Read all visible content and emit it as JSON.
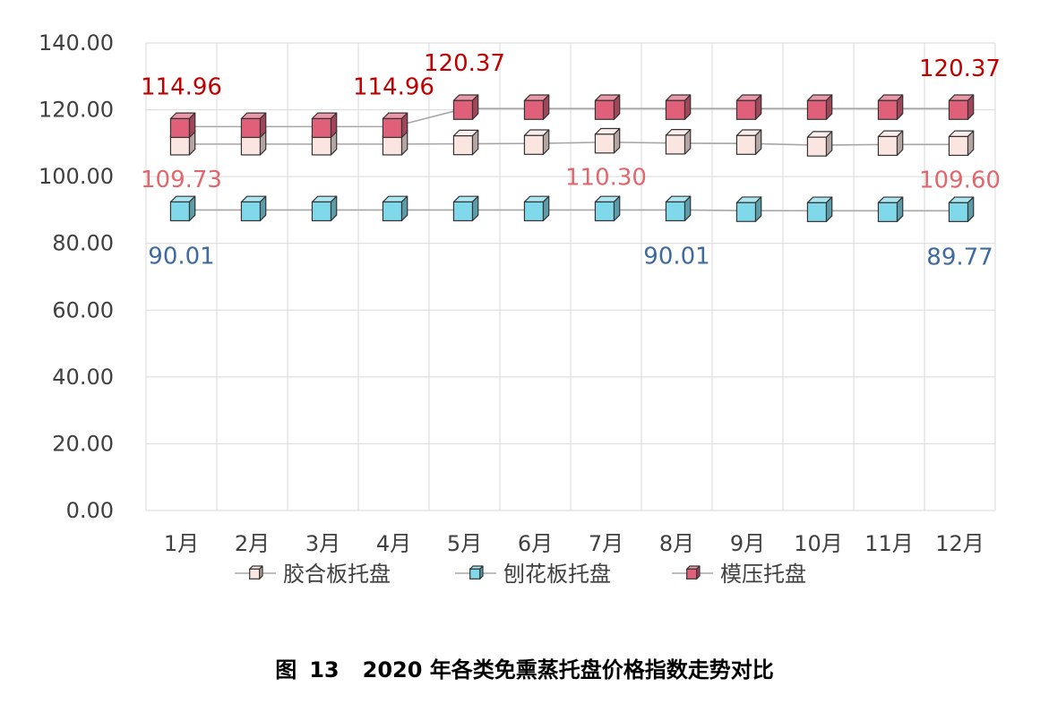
{
  "chart_data": {
    "type": "line",
    "categories": [
      "1月",
      "2月",
      "3月",
      "4月",
      "5月",
      "6月",
      "7月",
      "8月",
      "9月",
      "10月",
      "11月",
      "12月"
    ],
    "ylim": [
      0,
      140
    ],
    "yticks": [
      "0.00",
      "20.00",
      "40.00",
      "60.00",
      "80.00",
      "100.00",
      "120.00",
      "140.00"
    ],
    "grid": true,
    "legend_position": "bottom",
    "series": [
      {
        "name": "胶合板托盘",
        "values": [
          109.73,
          109.73,
          109.73,
          109.73,
          109.8,
          109.9,
          110.3,
          110.0,
          109.9,
          109.4,
          109.6,
          109.6
        ],
        "color": "#fbe5e1",
        "label_color": "#e0686d"
      },
      {
        "name": "刨花板托盘",
        "values": [
          90.01,
          90.01,
          90.01,
          90.01,
          90.01,
          90.01,
          90.01,
          90.01,
          89.8,
          89.77,
          89.77,
          89.77
        ],
        "color": "#7fd9ea",
        "label_color": "#3e6aa0"
      },
      {
        "name": "模压托盘",
        "values": [
          114.96,
          114.96,
          114.96,
          114.96,
          120.37,
          120.37,
          120.37,
          120.37,
          120.37,
          120.37,
          120.37,
          120.37
        ],
        "color": "#e0607a",
        "label_color": "#c00000"
      }
    ],
    "annotations": [
      {
        "series": 2,
        "index": 0,
        "text": "114.96"
      },
      {
        "series": 2,
        "index": 3,
        "text": "114.96"
      },
      {
        "series": 2,
        "index": 4,
        "text": "120.37"
      },
      {
        "series": 2,
        "index": 11,
        "text": "120.37"
      },
      {
        "series": 0,
        "index": 0,
        "text": "109.73"
      },
      {
        "series": 0,
        "index": 6,
        "text": "110.30"
      },
      {
        "series": 0,
        "index": 11,
        "text": "109.60"
      },
      {
        "series": 1,
        "index": 0,
        "text": "90.01"
      },
      {
        "series": 1,
        "index": 7,
        "text": "90.01"
      },
      {
        "series": 1,
        "index": 11,
        "text": "89.77"
      }
    ]
  },
  "caption": {
    "prefix": "图",
    "number": "13",
    "title": "2020 年各类免熏蒸托盘价格指数走势对比"
  }
}
